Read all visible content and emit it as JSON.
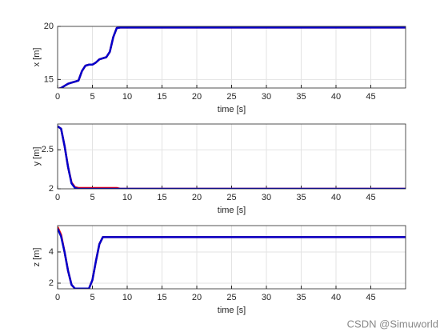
{
  "chart_data": [
    {
      "type": "line",
      "ylabel": "x [m]",
      "xlabel": "time [s]",
      "x": [
        0,
        0.5,
        1,
        1.5,
        2,
        2.5,
        3,
        3.5,
        4,
        4.5,
        5,
        5.5,
        6,
        6.5,
        7,
        7.5,
        8,
        8.5,
        9,
        50
      ],
      "series": [
        {
          "color": "#ff0000",
          "values": [
            14.1,
            14.2,
            14.4,
            14.6,
            14.7,
            14.8,
            14.9,
            15.8,
            16.3,
            16.4,
            16.4,
            16.6,
            16.9,
            17.0,
            17.1,
            17.6,
            19.0,
            19.85,
            19.9,
            19.9
          ]
        },
        {
          "color": "#0000cc",
          "values": [
            14.1,
            14.2,
            14.4,
            14.6,
            14.7,
            14.8,
            14.9,
            15.8,
            16.3,
            16.4,
            16.4,
            16.6,
            16.9,
            17.0,
            17.1,
            17.6,
            19.0,
            19.85,
            19.9,
            19.9
          ]
        }
      ],
      "xlim": [
        0,
        50
      ],
      "xticks": [
        0,
        5,
        10,
        15,
        20,
        25,
        30,
        35,
        40,
        45
      ],
      "ylim": [
        14.2,
        20
      ],
      "yticks": [
        15,
        20
      ],
      "grid": true
    },
    {
      "type": "line",
      "ylabel": "y [m]",
      "xlabel": "time [s]",
      "x": [
        0,
        0.5,
        1,
        1.5,
        2,
        2.5,
        3,
        3.5,
        4,
        4.5,
        5,
        5.5,
        6,
        6.5,
        7,
        7.5,
        8,
        8.5,
        9,
        50
      ],
      "series": [
        {
          "color": "#ff0000",
          "values": [
            2.8,
            2.77,
            2.55,
            2.28,
            2.08,
            2.02,
            2.01,
            2.01,
            2.01,
            2.01,
            2.01,
            2.01,
            2.01,
            2.01,
            2.01,
            2.01,
            2.01,
            2.01,
            2.0,
            2.0
          ]
        },
        {
          "color": "#0000cc",
          "values": [
            2.8,
            2.77,
            2.55,
            2.28,
            2.07,
            2.01,
            2.0,
            2.0,
            2.0,
            2.0,
            2.0,
            2.0,
            2.0,
            2.0,
            2.0,
            2.0,
            2.0,
            2.0,
            2.0,
            2.0
          ]
        }
      ],
      "xlim": [
        0,
        50
      ],
      "xticks": [
        0,
        5,
        10,
        15,
        20,
        25,
        30,
        35,
        40,
        45
      ],
      "ylim": [
        2,
        2.83
      ],
      "yticks": [
        2,
        2.5
      ],
      "grid": true
    },
    {
      "type": "line",
      "ylabel": "z [m]",
      "xlabel": "time [s]",
      "x": [
        0,
        0.5,
        1,
        1.5,
        2,
        2.5,
        3,
        3.5,
        4,
        4.5,
        5,
        5.5,
        6,
        6.5,
        7,
        7.5,
        8,
        8.5,
        9,
        50
      ],
      "series": [
        {
          "color": "#ff0000",
          "values": [
            5.6,
            5.1,
            4.0,
            2.8,
            1.9,
            1.65,
            1.65,
            1.65,
            1.65,
            1.65,
            2.2,
            3.4,
            4.5,
            4.95,
            4.95,
            4.95,
            4.95,
            4.95,
            4.95,
            4.95
          ]
        },
        {
          "color": "#0000cc",
          "values": [
            5.5,
            5.0,
            4.0,
            2.8,
            1.9,
            1.65,
            1.65,
            1.65,
            1.65,
            1.65,
            2.2,
            3.4,
            4.5,
            4.95,
            4.95,
            4.95,
            4.95,
            4.95,
            4.95,
            4.95
          ]
        }
      ],
      "xlim": [
        0,
        50
      ],
      "xticks": [
        0,
        5,
        10,
        15,
        20,
        25,
        30,
        35,
        40,
        45
      ],
      "ylim": [
        1.64,
        5.69
      ],
      "yticks": [
        2,
        4
      ],
      "grid": true
    }
  ],
  "watermark": "CSDN @Simuworld"
}
